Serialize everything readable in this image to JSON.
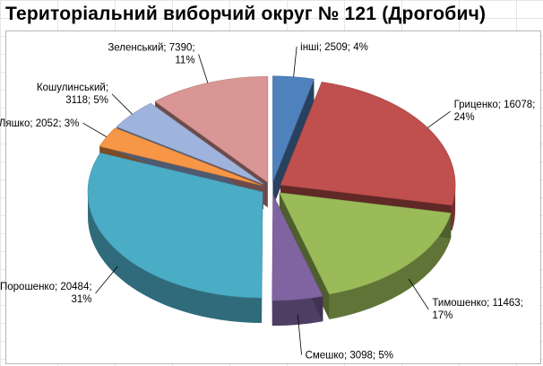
{
  "chart_data": {
    "type": "pie",
    "style": "3d-exploded",
    "title": "Територіальний виборчий округ № 121 (Дрогобич)",
    "slices": [
      {
        "name": "інші",
        "value": 2509,
        "percent": "4%",
        "color": "#4f81bd",
        "label": "інші; 2509; 4%"
      },
      {
        "name": "Гриценко",
        "value": 16078,
        "percent": "24%",
        "color": "#c0504d",
        "label": "Гриценко; 16078;",
        "label2": "24%"
      },
      {
        "name": "Тимошенко",
        "value": 11463,
        "percent": "17%",
        "color": "#9bbb59",
        "label": "Тимошенко; 11463;",
        "label2": "17%"
      },
      {
        "name": "Смешко",
        "value": 3098,
        "percent": "5%",
        "color": "#8064a2",
        "label": "Смешко; 3098; 5%"
      },
      {
        "name": "Порошенко",
        "value": 20484,
        "percent": "31%",
        "color": "#4bacc6",
        "label": "Порошенко; 20484;",
        "label2": "31%"
      },
      {
        "name": "Ляшко",
        "value": 2052,
        "percent": "3%",
        "color": "#f79646",
        "label": "Ляшко; 2052; 3%"
      },
      {
        "name": "Кошулинський",
        "value": 3118,
        "percent": "5%",
        "color": "#9fb4dc",
        "label": "Кошулинський;",
        "label2": "3118; 5%"
      },
      {
        "name": "Зеленський",
        "value": 7390,
        "percent": "11%",
        "color": "#d99694",
        "label": "Зеленський; 7390;",
        "label2": "11%"
      }
    ]
  }
}
